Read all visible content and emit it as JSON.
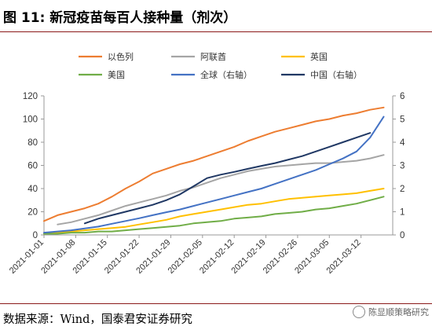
{
  "figure": {
    "title": "图 11: 新冠疫苗每百人接种量（剂次）",
    "source": "数据来源：Wind，国泰君安证券研究",
    "watermark": "陈显顺策略研究"
  },
  "chart_data": {
    "type": "line",
    "x": [
      "2021-01-01",
      "2021-01-04",
      "2021-01-07",
      "2021-01-10",
      "2021-01-13",
      "2021-01-16",
      "2021-01-19",
      "2021-01-22",
      "2021-01-25",
      "2021-01-28",
      "2021-01-31",
      "2021-02-03",
      "2021-02-06",
      "2021-02-09",
      "2021-02-12",
      "2021-02-15",
      "2021-02-18",
      "2021-02-21",
      "2021-02-24",
      "2021-02-27",
      "2021-03-02",
      "2021-03-05",
      "2021-03-08",
      "2021-03-11",
      "2021-03-14",
      "2021-03-17"
    ],
    "xticks": [
      "2021-01-01",
      "2021-01-08",
      "2021-01-15",
      "2021-01-22",
      "2021-01-29",
      "2021-02-05",
      "2021-02-12",
      "2021-02-19",
      "2021-02-26",
      "2021-03-05",
      "2021-03-12"
    ],
    "ylim": [
      0,
      120
    ],
    "yticks": [
      0,
      20,
      40,
      60,
      80,
      100,
      120
    ],
    "y2lim": [
      0,
      6
    ],
    "y2ticks": [
      0,
      1,
      2,
      3,
      4,
      5,
      6
    ],
    "grid": false,
    "legend_placement": "top",
    "series": [
      {
        "name": "以色列",
        "axis": "left",
        "color": "#ed7d31",
        "values": [
          12,
          17,
          20,
          23,
          27,
          33,
          40,
          46,
          53,
          57,
          61,
          64,
          68,
          72,
          76,
          81,
          85,
          89,
          92,
          95,
          98,
          100,
          103,
          105,
          108,
          110
        ]
      },
      {
        "name": "阿联酋",
        "axis": "left",
        "color": "#a5a5a5",
        "values": [
          null,
          9,
          11,
          14,
          17,
          21,
          25,
          28,
          31,
          34,
          38,
          41,
          45,
          49,
          52,
          55,
          57,
          59,
          60,
          61,
          62,
          62,
          63,
          64,
          66,
          69
        ]
      },
      {
        "name": "英国",
        "axis": "left",
        "color": "#ffc000",
        "values": [
          1,
          2,
          3,
          4,
          5,
          6,
          7,
          9,
          11,
          13,
          16,
          18,
          20,
          22,
          24,
          26,
          27,
          29,
          31,
          32,
          33,
          34,
          35,
          36,
          38,
          40
        ]
      },
      {
        "name": "美国",
        "axis": "left",
        "color": "#70ad47",
        "values": [
          1,
          1,
          2,
          2,
          3,
          3,
          4,
          5,
          6,
          7,
          8,
          10,
          11,
          12,
          14,
          15,
          16,
          18,
          19,
          20,
          22,
          23,
          25,
          27,
          30,
          33
        ]
      },
      {
        "name": "全球（右轴）",
        "axis": "right",
        "color": "#4472c4",
        "values": [
          0.1,
          0.15,
          0.2,
          0.28,
          0.36,
          0.48,
          0.6,
          0.72,
          0.85,
          0.98,
          1.1,
          1.25,
          1.4,
          1.55,
          1.7,
          1.85,
          2.0,
          2.2,
          2.4,
          2.6,
          2.8,
          3.05,
          3.3,
          3.6,
          4.2,
          5.1
        ]
      },
      {
        "name": "中国（右轴）",
        "axis": "right",
        "color": "#203864",
        "values": [
          null,
          null,
          null,
          0.5,
          0.7,
          0.85,
          1.0,
          1.15,
          1.3,
          1.5,
          1.75,
          2.1,
          2.45,
          2.6,
          2.72,
          2.85,
          2.98,
          3.1,
          3.25,
          3.4,
          3.6,
          3.8,
          4.0,
          4.2,
          4.4,
          null
        ]
      }
    ]
  }
}
